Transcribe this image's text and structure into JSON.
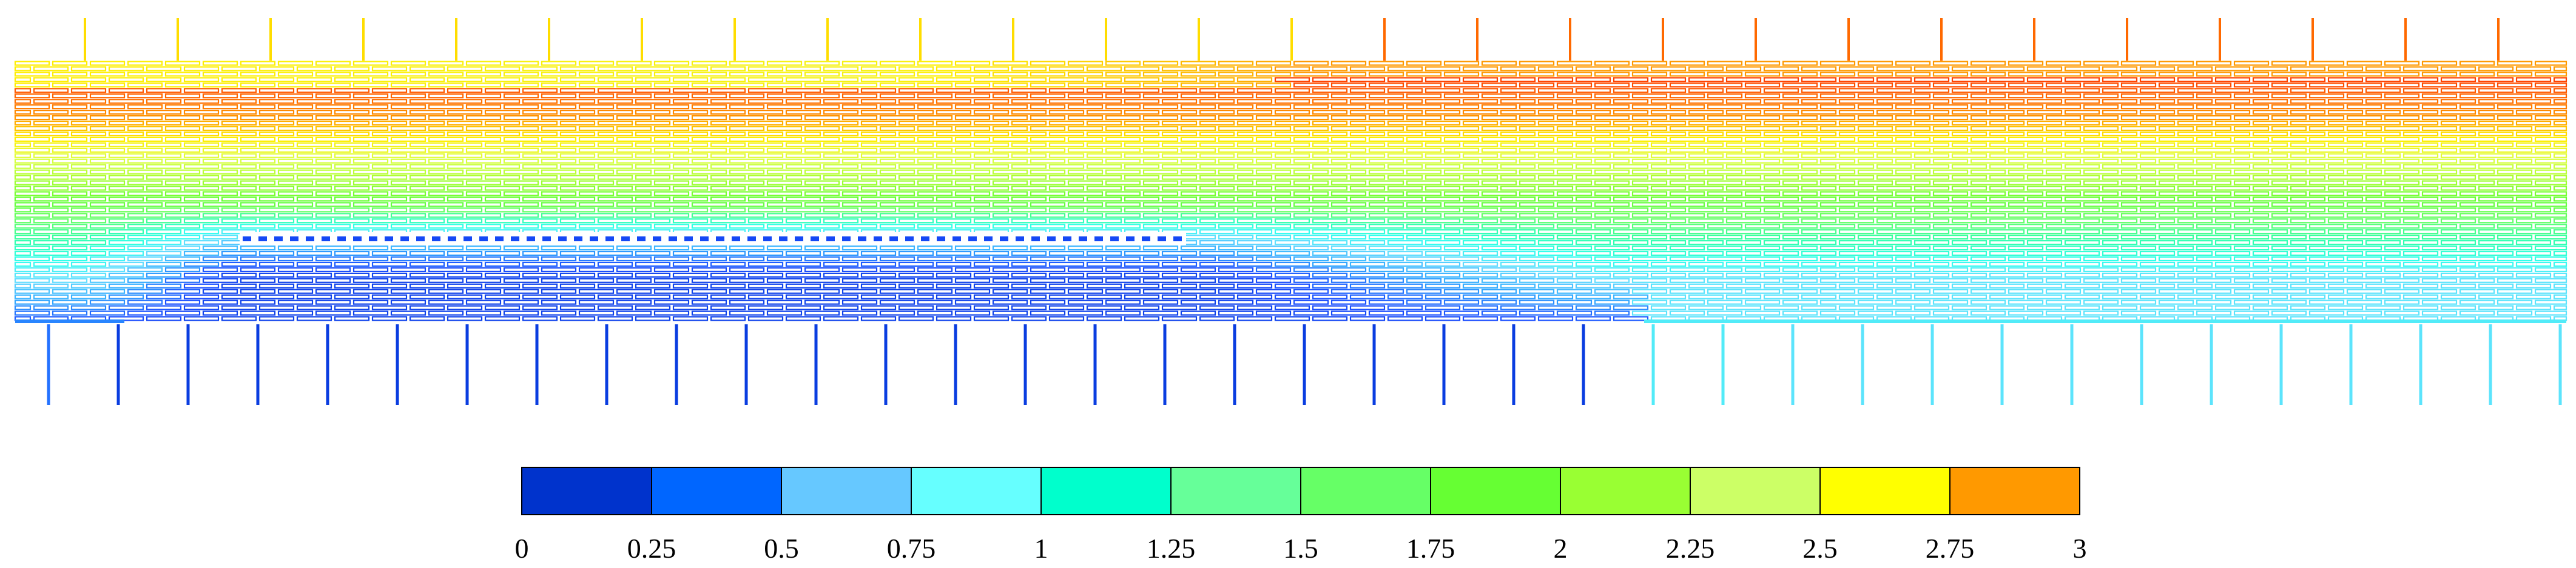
{
  "legend": {
    "placement": "bottom-center",
    "ticks": [
      "0",
      "0.25",
      "0.5",
      "0.75",
      "1",
      "1.25",
      "1.5",
      "1.75",
      "2",
      "2.25",
      "2.5",
      "2.75",
      "3"
    ],
    "colors": [
      "#0033cc",
      "#0066ff",
      "#66c8ff",
      "#66ffff",
      "#00ffcc",
      "#66ff99",
      "#66ff66",
      "#66ff33",
      "#99ff33",
      "#ccff66",
      "#ffff00",
      "#ff9900"
    ],
    "range": [
      0,
      3
    ]
  },
  "field_palette": {
    "0": "#0033cc",
    "0.25": "#1a4dff",
    "0.5": "#33aaff",
    "0.75": "#66ddff",
    "1": "#33ffee",
    "1.25": "#33ffaa",
    "1.5": "#66ff66",
    "1.75": "#66ff33",
    "2": "#aaff33",
    "2.25": "#ddff44",
    "2.5": "#ffee00",
    "2.75": "#ff9900",
    "3": "#ff2200"
  }
}
